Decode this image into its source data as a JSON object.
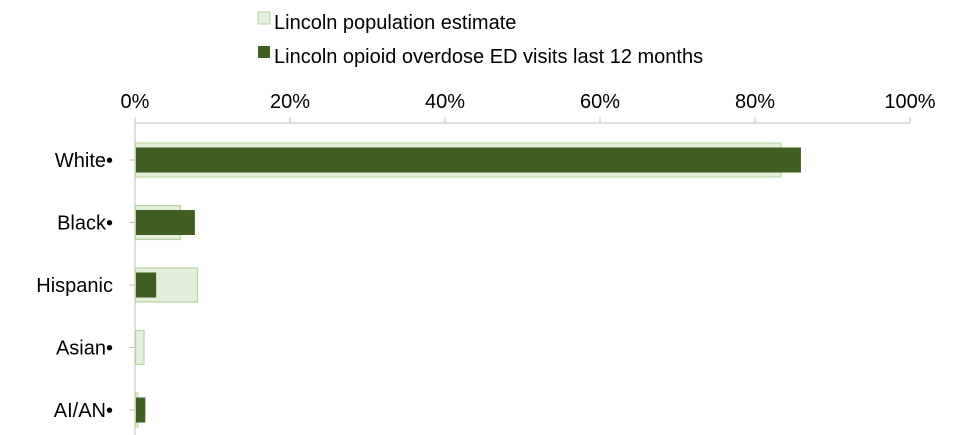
{
  "chart_data": {
    "type": "bar",
    "orientation": "horizontal",
    "categories": [
      "White•",
      "Black•",
      "Hispanic",
      "Asian•",
      "AI/AN•"
    ],
    "series": [
      {
        "name": "Lincoln population estimate",
        "values": [
          83.3,
          5.8,
          8.0,
          1.1,
          0.3
        ],
        "color": "#e3eedb",
        "stroke": "#b9d5a3"
      },
      {
        "name": "Lincoln opioid overdose ED visits last 12 months",
        "values": [
          85.8,
          7.6,
          2.6,
          0.0,
          1.2
        ],
        "color": "#3e5e22"
      }
    ],
    "xlim": [
      0,
      100
    ],
    "xticks": [
      0,
      20,
      40,
      60,
      80,
      100
    ],
    "tick_suffix": "%",
    "axis_position": "top",
    "legend_position": "top",
    "grid": false
  }
}
